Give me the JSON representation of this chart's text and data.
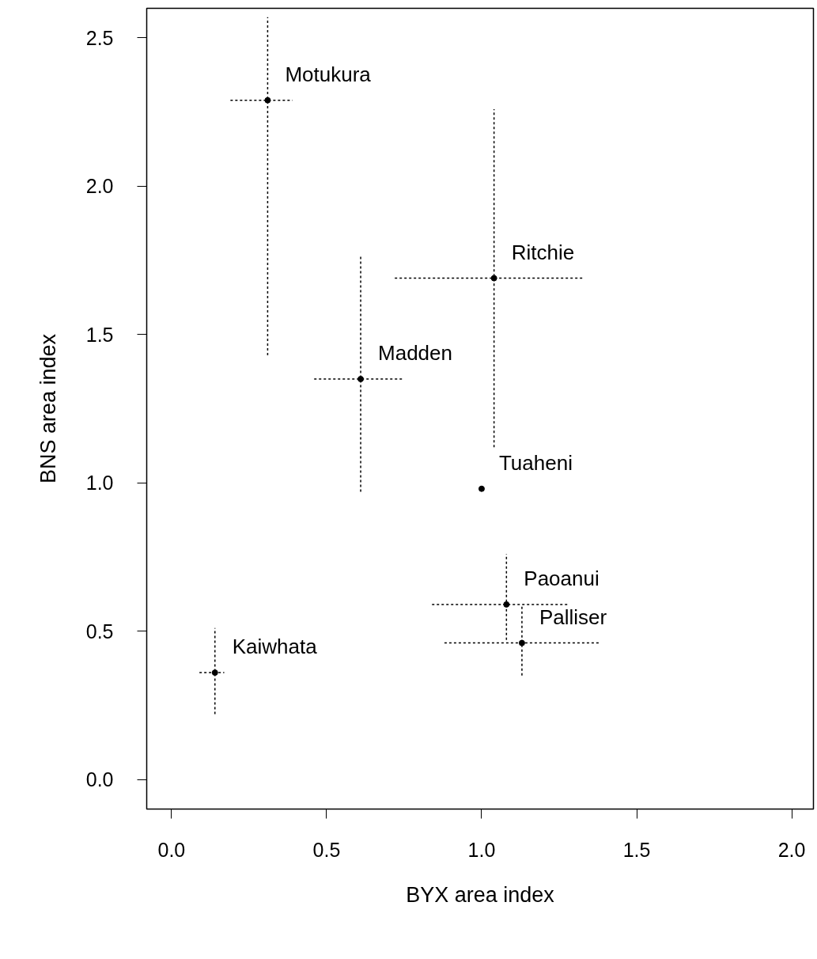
{
  "chart_data": {
    "type": "scatter",
    "xlabel": "BYX area index",
    "ylabel": "BNS area index",
    "x": [
      0.31,
      1.04,
      0.61,
      1.0,
      1.08,
      1.13,
      0.14
    ],
    "values": [
      2.29,
      1.69,
      1.35,
      0.98,
      0.59,
      0.46,
      0.36
    ],
    "color": "#000000",
    "marker": "circle",
    "errors": [
      [
        1.43,
        2.57
      ],
      [
        1.12,
        2.26
      ],
      [
        0.97,
        1.77
      ],
      null,
      [
        0.47,
        0.76
      ],
      [
        0.35,
        0.59
      ],
      [
        0.22,
        0.51
      ]
    ],
    "xerrors": [
      [
        0.19,
        0.39
      ],
      [
        0.72,
        1.33
      ],
      [
        0.46,
        0.75
      ],
      null,
      [
        0.84,
        1.28
      ],
      [
        0.88,
        1.38
      ],
      [
        0.09,
        0.17
      ]
    ],
    "line_style": "dotted",
    "annotations": [
      {
        "text": "Motukura",
        "x": 0.31,
        "y": 2.29
      },
      {
        "text": "Ritchie",
        "x": 1.04,
        "y": 1.69
      },
      {
        "text": "Madden",
        "x": 0.61,
        "y": 1.35
      },
      {
        "text": "Tuaheni",
        "x": 1.0,
        "y": 0.98
      },
      {
        "text": "Paoanui",
        "x": 1.08,
        "y": 0.59
      },
      {
        "text": "Palliser",
        "x": 1.13,
        "y": 0.46
      },
      {
        "text": "Kaiwhata",
        "x": 0.14,
        "y": 0.36
      }
    ],
    "xlim": [
      -0.08,
      2.07
    ],
    "ylim": [
      -0.1,
      2.6
    ],
    "xticks": [
      {
        "value": 0,
        "label": "0.0"
      },
      0.5,
      {
        "value": 1,
        "label": "1.0"
      },
      1.5,
      {
        "value": 2,
        "label": "2.0"
      }
    ],
    "yticks": [
      {
        "value": 0,
        "label": "0.0"
      },
      0.5,
      {
        "value": 1,
        "label": "1.0"
      },
      1.5,
      {
        "value": 2,
        "label": "2.0"
      },
      2.5
    ],
    "grid": false
  }
}
